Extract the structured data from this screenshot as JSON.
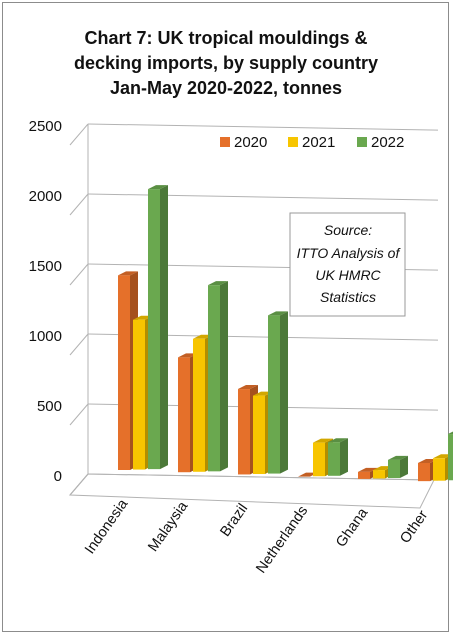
{
  "title_lines": [
    "Chart 7: UK tropical mouldings &",
    "decking imports, by supply country",
    "Jan-May 2020-2022, tonnes"
  ],
  "source_lines": [
    "Source:",
    "ITTO Analysis of",
    "UK HMRC",
    "Statistics"
  ],
  "colors": {
    "2020": "#e5702a",
    "2021": "#f7c500",
    "2022": "#6aa84f",
    "grid": "#b3b3b3",
    "frame": "#8c8c8c"
  },
  "chart_data": {
    "type": "bar",
    "categories": [
      "Indonesia",
      "Malaysia",
      "Brazil",
      "Netherlands",
      "Ghana",
      "Other"
    ],
    "series": [
      {
        "name": "2020",
        "values": [
          1390,
          820,
          610,
          0,
          50,
          130
        ]
      },
      {
        "name": "2021",
        "values": [
          1070,
          950,
          560,
          240,
          60,
          160
        ]
      },
      {
        "name": "2022",
        "values": [
          2000,
          1330,
          1130,
          240,
          130,
          330
        ]
      }
    ],
    "ylim": [
      0,
      2500
    ],
    "yticks": [
      0,
      500,
      1000,
      1500,
      2000,
      2500
    ],
    "legend_position": "top-right",
    "grid": true,
    "style": "3d-clustered-column"
  }
}
